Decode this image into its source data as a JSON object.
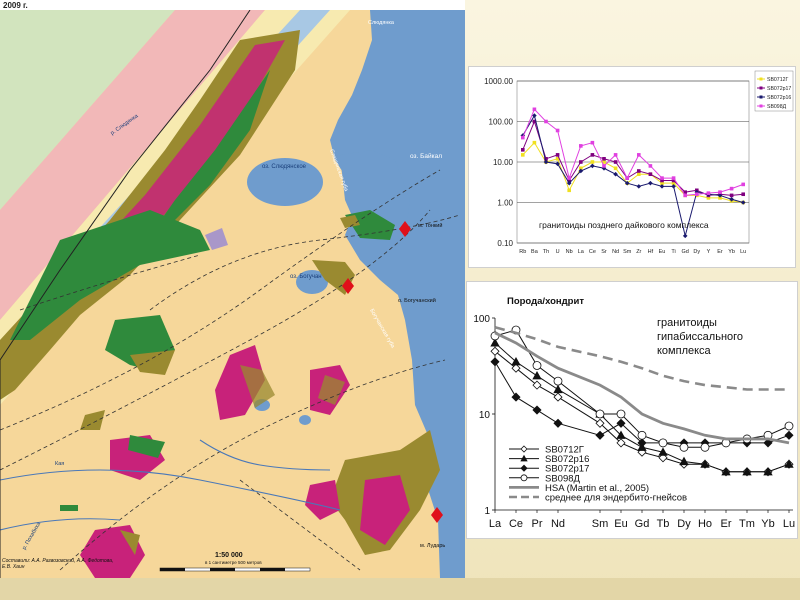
{
  "map": {
    "year": "2009 г.",
    "lake_slyudyanskoe": "оз. Слюдянское",
    "lake_boguchan": "оз. Богучан",
    "lake_baikal": "оз. Байкал",
    "bay_slyudyanskaya": "Слюдянская губа",
    "bay_bogukchan": "Богучанская губа",
    "place_tonkiy": "м. Тонкий",
    "place_bogukchansky": "о. Богучанский",
    "place_ludar": "м. Лударь",
    "river_slyudyanka": "р. Слюдянка",
    "river_label_2": "Слюдянка",
    "river_pokhabikha": "р. Похабиха",
    "river_label_3": "Кая",
    "scale_ratio": "1:50 000",
    "scale_caption": "в 1 сантиметре 500 метров",
    "authors": "Составили: А.А. Развозовский, А.А. Федотова, Е.В. Хаин"
  },
  "chart_data": [
    {
      "type": "line",
      "caption": "гранитоиды позднего дайкового комплекса",
      "yscale": "log",
      "ylim": [
        0.1,
        1000
      ],
      "y_ticks": [
        "1000.00",
        "100.00",
        "10.00",
        "1.00",
        "0.10"
      ],
      "x": [
        "Rb",
        "Ba",
        "Th",
        "U",
        "Nb",
        "La",
        "Ce",
        "Sr",
        "Nd",
        "Sm",
        "Zr",
        "Hf",
        "Eu",
        "Ti",
        "Gd",
        "Dy",
        "Y",
        "Er",
        "Yb",
        "Lu"
      ],
      "series": [
        {
          "name": "SB0712Г",
          "color": "#f0e020",
          "marker": "square",
          "values": [
            15,
            30,
            10,
            12,
            2,
            7,
            10,
            10,
            7,
            3,
            5,
            5,
            3,
            3,
            1.5,
            1.5,
            1.3,
            1.3,
            1.1,
            1
          ]
        },
        {
          "name": "SB072p17",
          "color": "#800080",
          "marker": "square",
          "values": [
            20,
            100,
            12,
            15,
            3.5,
            10,
            15,
            12,
            10,
            4,
            6,
            5,
            3.5,
            3.5,
            1.8,
            2,
            1.5,
            1.6,
            1.5,
            1.6
          ]
        },
        {
          "name": "SB072p16",
          "color": "#1a1a6e",
          "marker": "diamond",
          "values": [
            45,
            140,
            10,
            9,
            3,
            6,
            8,
            7,
            5,
            3,
            2.5,
            3,
            2.5,
            2.5,
            0.15,
            1.8,
            1.6,
            1.5,
            1.2,
            1
          ]
        },
        {
          "name": "SB098Д",
          "color": "#e040e0",
          "marker": "square",
          "values": [
            40,
            200,
            100,
            60,
            4,
            25,
            30,
            8,
            15,
            4,
            15,
            8,
            4,
            4,
            1.5,
            1.6,
            1.7,
            1.8,
            2.2,
            2.8
          ]
        }
      ]
    },
    {
      "type": "line",
      "ylabel": "Порода/хондрит",
      "caption": "гранитоиды гипабиссального комплекса",
      "yscale": "log",
      "ylim": [
        1,
        100
      ],
      "y_ticks": [
        "100",
        "10",
        "1"
      ],
      "x": [
        "La",
        "Ce",
        "Pr",
        "Nd",
        "Sm",
        "Eu",
        "Gd",
        "Tb",
        "Dy",
        "Ho",
        "Er",
        "Tm",
        "Yb",
        "Lu"
      ],
      "x_positions": [
        1,
        2,
        3,
        4,
        6,
        7,
        8,
        9,
        10,
        11,
        12,
        13,
        14,
        15
      ],
      "series": [
        {
          "name": "SB0712Г",
          "style": "open-diamond",
          "values": [
            45,
            30,
            20,
            15,
            8,
            5,
            4,
            3.5,
            3,
            3,
            2.5,
            2.5,
            2.5,
            3
          ]
        },
        {
          "name": "SB072p16",
          "style": "filled-triangle",
          "values": [
            55,
            35,
            25,
            18,
            10,
            6,
            4.5,
            4,
            3.2,
            3,
            2.5,
            2.5,
            2.5,
            3
          ]
        },
        {
          "name": "SB072p17",
          "style": "filled-diamond",
          "values": [
            35,
            15,
            11,
            8,
            6,
            8,
            5,
            5,
            5,
            5,
            5,
            5,
            5,
            6
          ]
        },
        {
          "name": "SB098Д",
          "style": "open-circle",
          "values": [
            65,
            75,
            32,
            22,
            10,
            10,
            6,
            5,
            4.5,
            4.5,
            5,
            5.5,
            6,
            7.5
          ]
        },
        {
          "name": "HSA (Martin et al., 2005)",
          "style": "thick-gray",
          "values": [
            70,
            55,
            40,
            30,
            20,
            15,
            10,
            8,
            7,
            6,
            5.5,
            5.5,
            5.5,
            5
          ]
        },
        {
          "name": "среднее для эндербито-гнейсов",
          "style": "dashed-gray",
          "values": [
            80,
            70,
            60,
            50,
            40,
            35,
            30,
            25,
            22,
            20,
            19,
            18,
            18,
            18
          ]
        }
      ]
    }
  ]
}
